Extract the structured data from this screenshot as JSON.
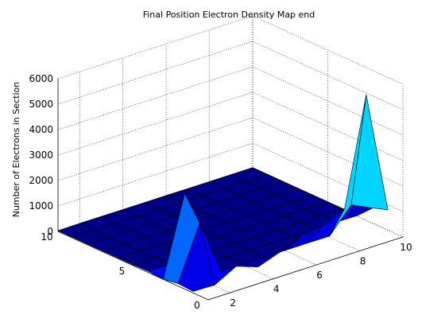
{
  "chart_data": {
    "type": "surface3d",
    "title": "Final Position Electron Density Map end",
    "xlabel": "",
    "ylabel": "",
    "zlabel": "Number of Electrons in Section",
    "x_ticks": [
      "2",
      "4",
      "6",
      "8",
      "10"
    ],
    "y_ticks": [
      "0",
      "5",
      "10"
    ],
    "z_ticks": [
      "0",
      "1000",
      "2000",
      "3000",
      "4000",
      "5000",
      "6000"
    ],
    "xlim": [
      1,
      10
    ],
    "ylim": [
      0,
      10
    ],
    "zlim": [
      0,
      6000
    ],
    "grid": true,
    "x": [
      1,
      2,
      3,
      4,
      5,
      6,
      7,
      8,
      9,
      10
    ],
    "y": [
      1,
      2,
      3,
      4,
      5,
      6,
      7,
      8,
      9,
      10
    ],
    "z": [
      [
        60,
        40,
        500,
        200,
        500,
        900,
        1000,
        1400,
        5600,
        800
      ],
      [
        100,
        2200,
        50,
        50,
        50,
        50,
        50,
        50,
        1000,
        600
      ],
      [
        0,
        3100,
        100,
        40,
        40,
        40,
        40,
        40,
        50,
        40
      ],
      [
        50,
        50,
        60,
        40,
        40,
        40,
        40,
        40,
        40,
        40
      ],
      [
        30,
        40,
        40,
        40,
        40,
        40,
        40,
        40,
        40,
        40
      ],
      [
        30,
        40,
        40,
        40,
        40,
        40,
        40,
        40,
        40,
        40
      ],
      [
        30,
        40,
        40,
        40,
        40,
        40,
        40,
        40,
        40,
        40
      ],
      [
        30,
        40,
        40,
        40,
        40,
        40,
        40,
        40,
        40,
        40
      ],
      [
        30,
        40,
        40,
        40,
        40,
        40,
        40,
        40,
        40,
        40
      ],
      [
        30,
        40,
        40,
        40,
        40,
        40,
        40,
        40,
        40,
        40
      ]
    ],
    "colormap": "jet"
  }
}
